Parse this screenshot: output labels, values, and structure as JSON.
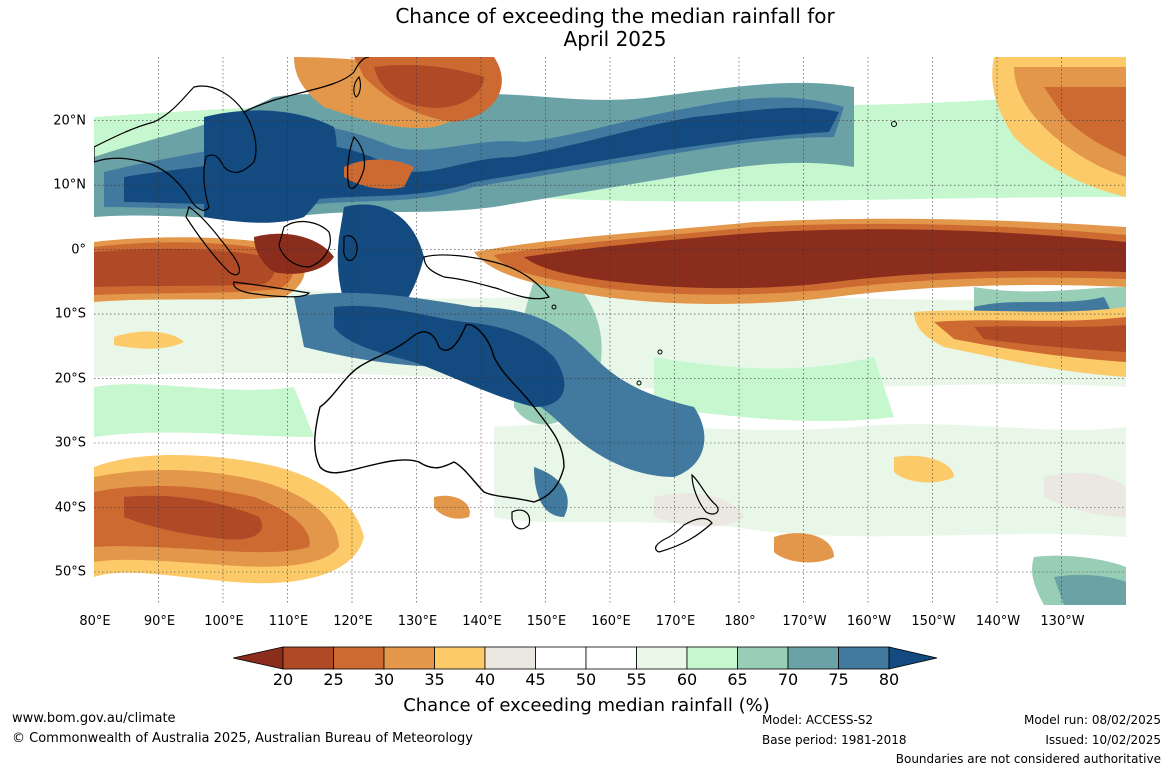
{
  "title_line1": "Chance of exceeding the median rainfall for",
  "title_line2": "April 2025",
  "lat_labels": [
    "20°N",
    "10°N",
    "0°",
    "10°S",
    "20°S",
    "30°S",
    "40°S",
    "50°S"
  ],
  "lon_labels": [
    "80°E",
    "90°E",
    "100°E",
    "110°E",
    "120°E",
    "130°E",
    "140°E",
    "150°E",
    "160°E",
    "170°E",
    "180°",
    "170°W",
    "160°W",
    "150°W",
    "140°W",
    "130°W"
  ],
  "colorbar": {
    "ticks": [
      "20",
      "25",
      "30",
      "35",
      "40",
      "45",
      "50",
      "55",
      "60",
      "65",
      "70",
      "75",
      "80"
    ],
    "colors": [
      "#8b2d1c",
      "#b04a26",
      "#cc6a32",
      "#e3974a",
      "#fdca6a",
      "#ebe8e2",
      "#ffffff",
      "#ffffff",
      "#e8f7e8",
      "#c6f7cf",
      "#98cdb6",
      "#6aa2a6",
      "#417a9e",
      "#134a80"
    ],
    "label": "Chance of exceeding median rainfall (%)"
  },
  "footer": {
    "website": "www.bom.gov.au/climate",
    "copyright": "© Commonwealth of Australia 2025, Australian Bureau of Meteorology",
    "model": "Model: ACCESS-S2",
    "base_period": "Base period: 1981-2018",
    "model_run": "Model run: 08/02/2025",
    "issued": "Issued: 10/02/2025",
    "disclaimer": "Boundaries are not considered authoritative"
  }
}
